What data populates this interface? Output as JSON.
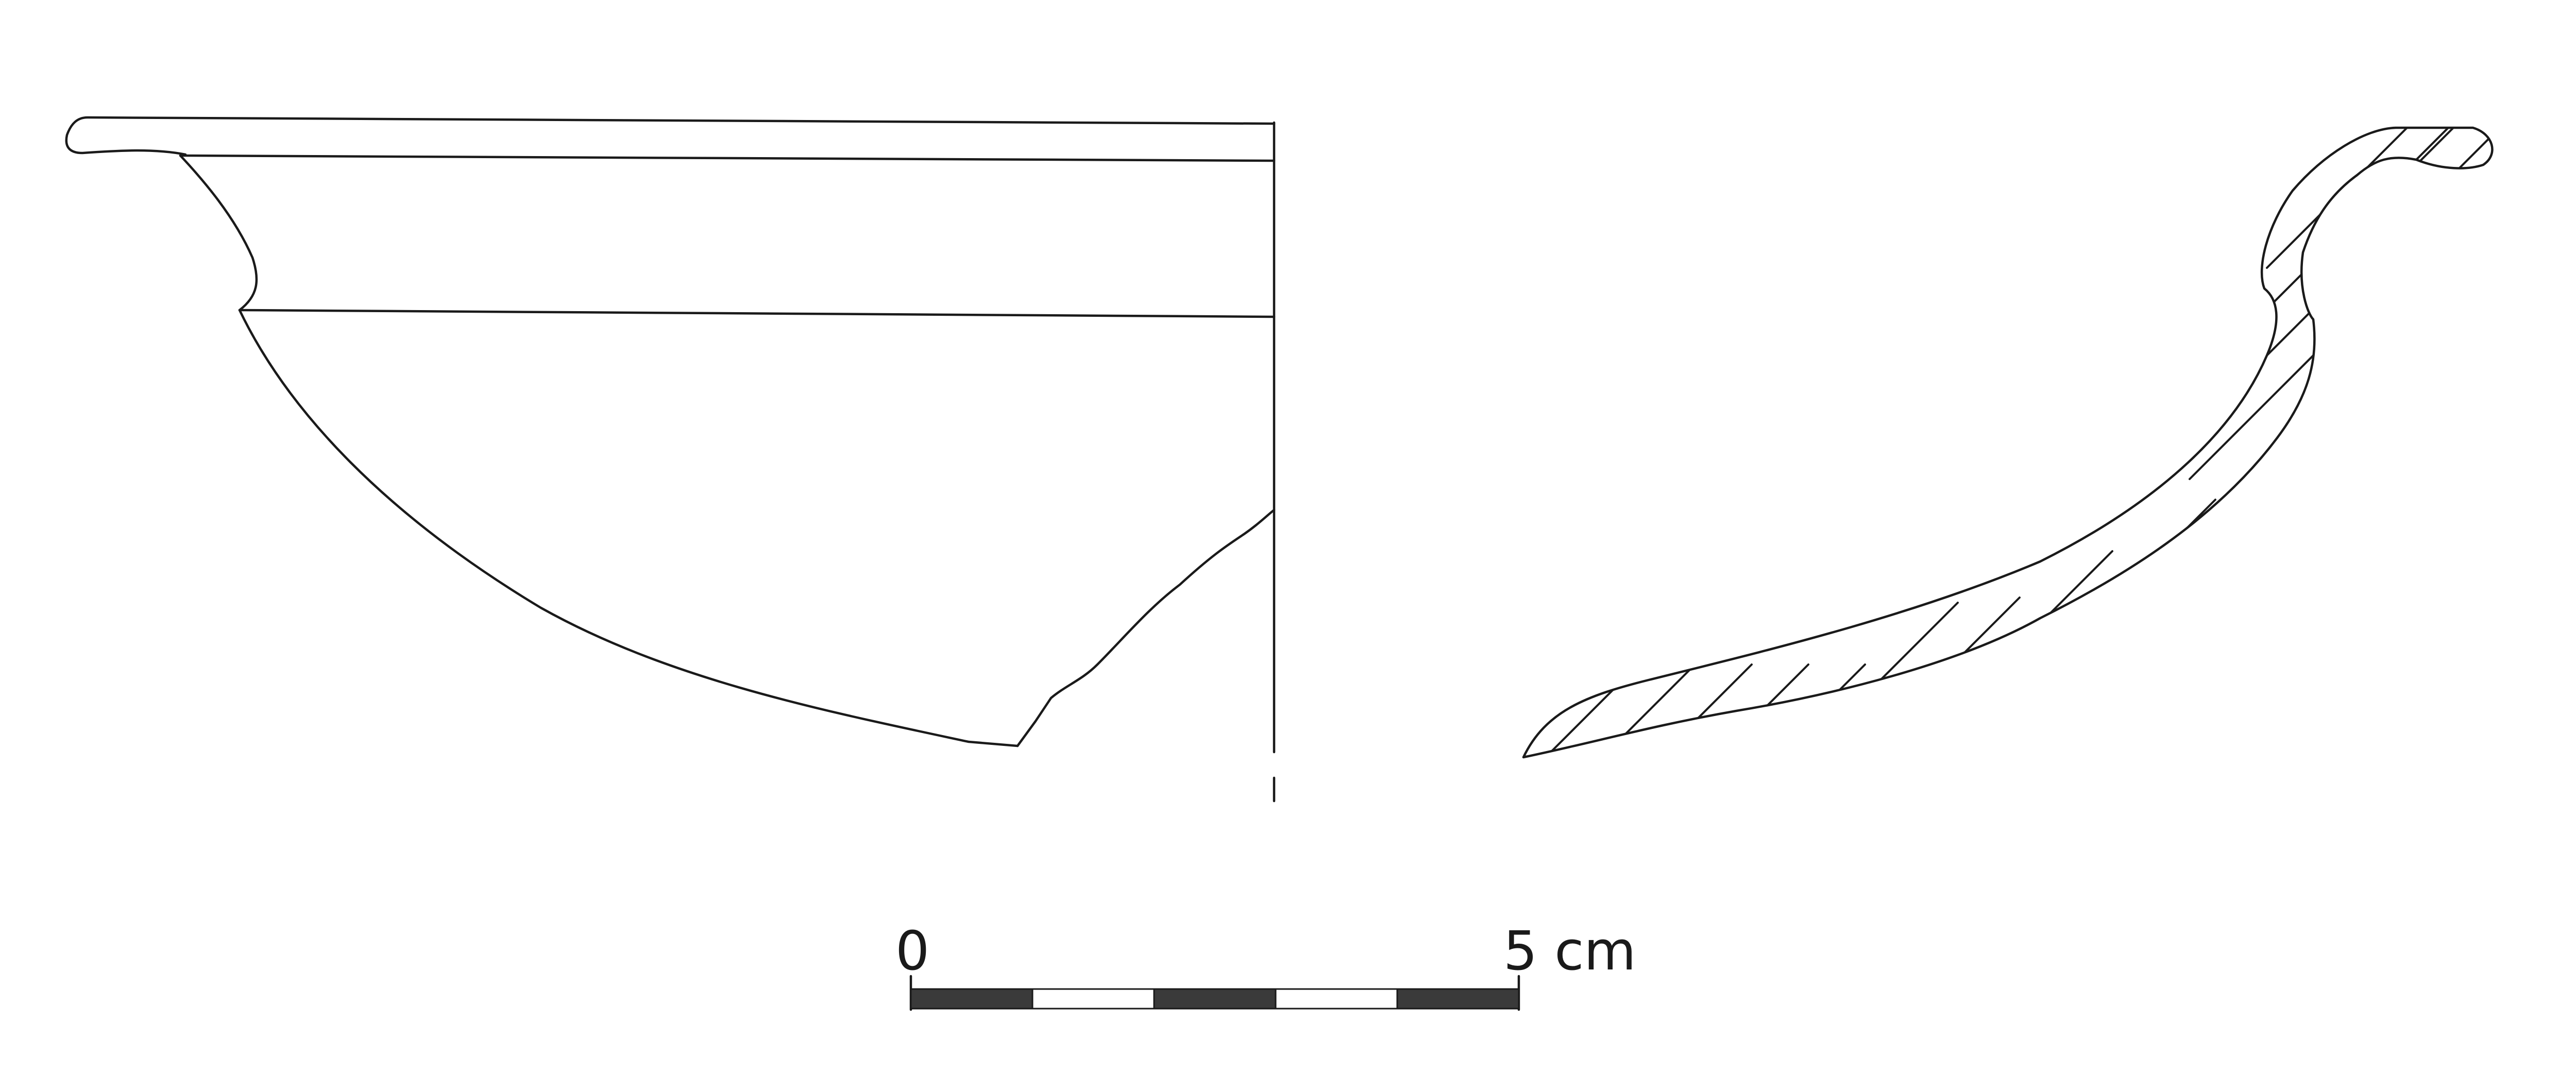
{
  "scale_bar": {
    "start_label": "0",
    "end_label": "5 cm",
    "segments": 5,
    "colors": {
      "dark": "#3a3a3a",
      "light": "#ffffff",
      "ink": "#1a1a1a"
    }
  }
}
